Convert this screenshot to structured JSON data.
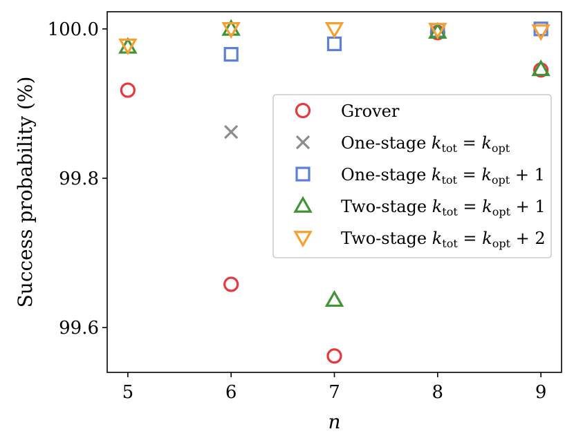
{
  "chart_data": {
    "type": "scatter",
    "title": "",
    "xlabel": "n",
    "ylabel": "Success probability (%)",
    "xlim": [
      4.8,
      9.2
    ],
    "ylim": [
      99.54,
      100.023
    ],
    "x_ticks": [
      5,
      6,
      7,
      8,
      9
    ],
    "y_ticks": [
      99.6,
      99.8,
      100.0
    ],
    "x_tick_labels": [
      "5",
      "6",
      "7",
      "8",
      "9"
    ],
    "y_tick_labels": [
      "99.6",
      "99.8",
      "100.0"
    ],
    "legend_position": "center-right",
    "series": [
      {
        "name": "Grover",
        "legend": {
          "prefix": "Grover",
          "k": "",
          "tot": "",
          "eq": "",
          "k2": "",
          "opt": "",
          "suffix": ""
        },
        "marker": "circle",
        "color": "#e8383d",
        "x": [
          5,
          6,
          7,
          8,
          9
        ],
        "y": [
          99.918,
          99.658,
          99.562,
          99.995,
          99.945
        ]
      },
      {
        "name": "One-stage ktot = kopt",
        "legend": {
          "prefix": "One-stage ",
          "k": "k",
          "tot": "tot",
          "eq": " = ",
          "k2": "k",
          "opt": "opt",
          "suffix": ""
        },
        "marker": "x",
        "color": "#8c8c8c",
        "x": [
          6
        ],
        "y": [
          99.862
        ]
      },
      {
        "name": "One-stage ktot = kopt + 1",
        "legend": {
          "prefix": "One-stage ",
          "k": "k",
          "tot": "tot",
          "eq": " = ",
          "k2": "k",
          "opt": "opt",
          "suffix": " + 1"
        },
        "marker": "square",
        "color": "#5b7fdc",
        "x": [
          6,
          7,
          8,
          9
        ],
        "y": [
          99.966,
          99.98,
          99.998,
          100.0
        ]
      },
      {
        "name": "Two-stage ktot = kopt + 1",
        "legend": {
          "prefix": "Two-stage ",
          "k": "k",
          "tot": "tot",
          "eq": " = ",
          "k2": "k",
          "opt": "opt",
          "suffix": " + 1"
        },
        "marker": "triangle-up",
        "color": "#3f9437",
        "x": [
          5,
          6,
          7,
          8,
          9
        ],
        "y": [
          99.976,
          100.0,
          99.637,
          99.996,
          99.946
        ]
      },
      {
        "name": "Two-stage ktot = kopt + 2",
        "legend": {
          "prefix": "Two-stage ",
          "k": "k",
          "tot": "tot",
          "eq": " = ",
          "k2": "k",
          "opt": "opt",
          "suffix": " + 2"
        },
        "marker": "triangle-down",
        "color": "#f5a030",
        "x": [
          5,
          6,
          7,
          8,
          9
        ],
        "y": [
          99.978,
          100.0,
          100.0,
          99.999,
          99.997
        ]
      }
    ]
  }
}
